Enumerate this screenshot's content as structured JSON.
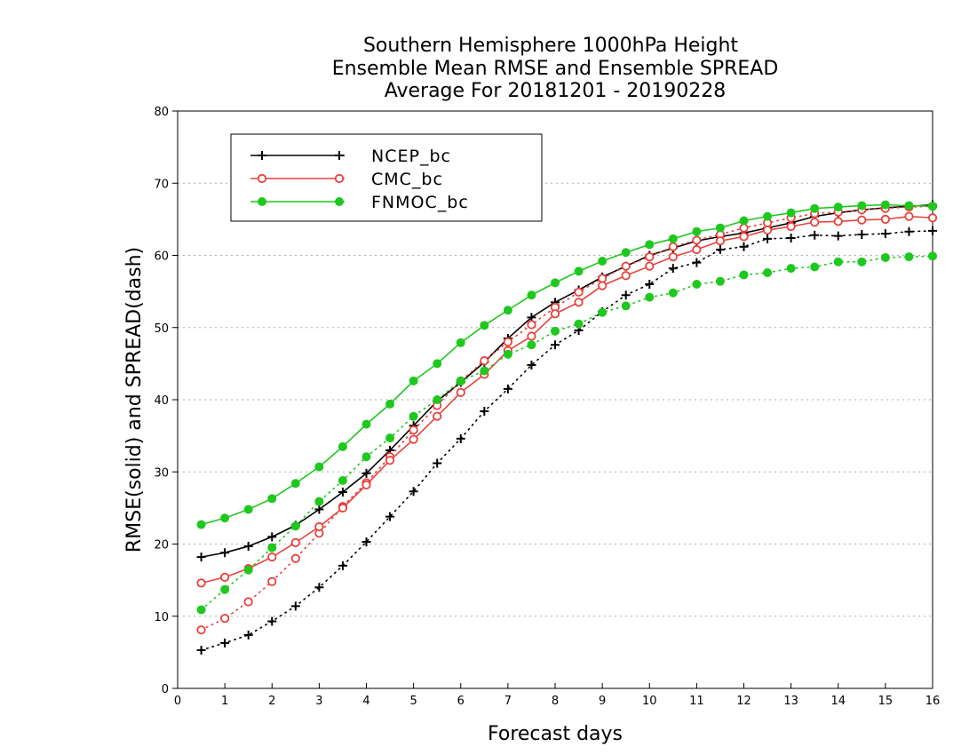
{
  "chart_data": {
    "type": "line",
    "title": [
      "Southern Hemisphere 1000hPa Height",
      "Ensemble Mean RMSE and Ensemble SPREAD",
      "Average For 20181201 - 20190228"
    ],
    "xlabel": "Forecast days",
    "ylabel": "RMSE(solid) and SPREAD(dash)",
    "xlim": [
      0,
      16
    ],
    "ylim": [
      0,
      80
    ],
    "xticks": [
      "0",
      "1",
      "2",
      "3",
      "4",
      "5",
      "6",
      "7",
      "8",
      "9",
      "10",
      "11",
      "12",
      "13",
      "14",
      "15",
      "16"
    ],
    "yticks": [
      "0",
      "10",
      "20",
      "30",
      "40",
      "50",
      "60",
      "70",
      "80"
    ],
    "grid": "horizontal dotted",
    "legend_position": "top-left",
    "x": [
      0.5,
      1,
      1.5,
      2,
      2.5,
      3,
      3.5,
      4,
      4.5,
      5,
      5.5,
      6,
      6.5,
      7,
      7.5,
      8,
      8.5,
      9,
      9.5,
      10,
      10.5,
      11,
      11.5,
      12,
      12.5,
      13,
      13.5,
      14,
      14.5,
      15,
      15.5,
      16
    ],
    "series": [
      {
        "name": "NCEP_bc",
        "color": "#000000",
        "marker": "plus",
        "rmse": [
          18.2,
          18.8,
          19.7,
          21.0,
          22.6,
          24.8,
          27.2,
          29.8,
          33.0,
          36.4,
          39.8,
          42.4,
          45.2,
          48.5,
          51.4,
          53.5,
          55.2,
          57.0,
          58.5,
          60.0,
          61.0,
          62.0,
          62.6,
          63.1,
          63.8,
          64.5,
          65.4,
          65.9,
          66.3,
          66.6,
          66.8,
          67.0
        ],
        "spread": [
          5.3,
          6.3,
          7.4,
          9.3,
          11.4,
          14.0,
          17.0,
          20.3,
          23.8,
          27.3,
          31.2,
          34.6,
          38.4,
          41.5,
          44.8,
          47.6,
          49.6,
          52.2,
          54.5,
          56.0,
          58.2,
          59.0,
          60.8,
          61.2,
          62.3,
          62.4,
          62.8,
          62.7,
          62.9,
          63.0,
          63.3,
          63.4
        ]
      },
      {
        "name": "CMC_bc",
        "color": "#e8413c",
        "marker": "open-circle",
        "rmse": [
          14.6,
          15.4,
          16.6,
          18.2,
          20.2,
          22.4,
          25.0,
          28.2,
          31.6,
          34.5,
          37.7,
          41.0,
          43.5,
          46.8,
          48.8,
          51.9,
          53.5,
          55.8,
          57.2,
          58.5,
          59.8,
          60.8,
          62.0,
          62.6,
          63.5,
          64.0,
          64.6,
          64.7,
          64.9,
          65.0,
          65.4,
          65.2
        ],
        "spread": [
          8.1,
          9.7,
          12.0,
          14.8,
          18.0,
          21.5,
          25.2,
          28.5,
          32.1,
          35.8,
          39.2,
          42.6,
          45.4,
          48.0,
          50.4,
          52.8,
          54.9,
          56.8,
          58.5,
          59.8,
          61.2,
          62.1,
          62.9,
          63.8,
          64.5,
          65.2,
          65.8,
          66.0,
          66.3,
          66.5,
          66.7,
          66.8
        ]
      },
      {
        "name": "FNMOC_bc",
        "color": "#1ec81e",
        "marker": "filled-circle",
        "rmse": [
          22.7,
          23.6,
          24.8,
          26.3,
          28.4,
          30.7,
          33.5,
          36.6,
          39.4,
          42.6,
          45.0,
          47.9,
          50.3,
          52.4,
          54.5,
          56.2,
          57.8,
          59.2,
          60.4,
          61.5,
          62.3,
          63.3,
          63.8,
          64.8,
          65.4,
          65.9,
          66.5,
          66.7,
          66.9,
          67.0,
          66.9,
          66.8
        ],
        "spread": [
          10.9,
          13.7,
          16.4,
          19.5,
          22.5,
          25.9,
          28.8,
          32.1,
          34.7,
          37.7,
          40.0,
          42.6,
          44.0,
          46.3,
          47.6,
          49.5,
          50.5,
          52.1,
          53.0,
          54.2,
          54.8,
          56.0,
          56.4,
          57.3,
          57.6,
          58.2,
          58.4,
          59.1,
          59.1,
          59.7,
          59.8,
          59.9
        ]
      }
    ]
  }
}
